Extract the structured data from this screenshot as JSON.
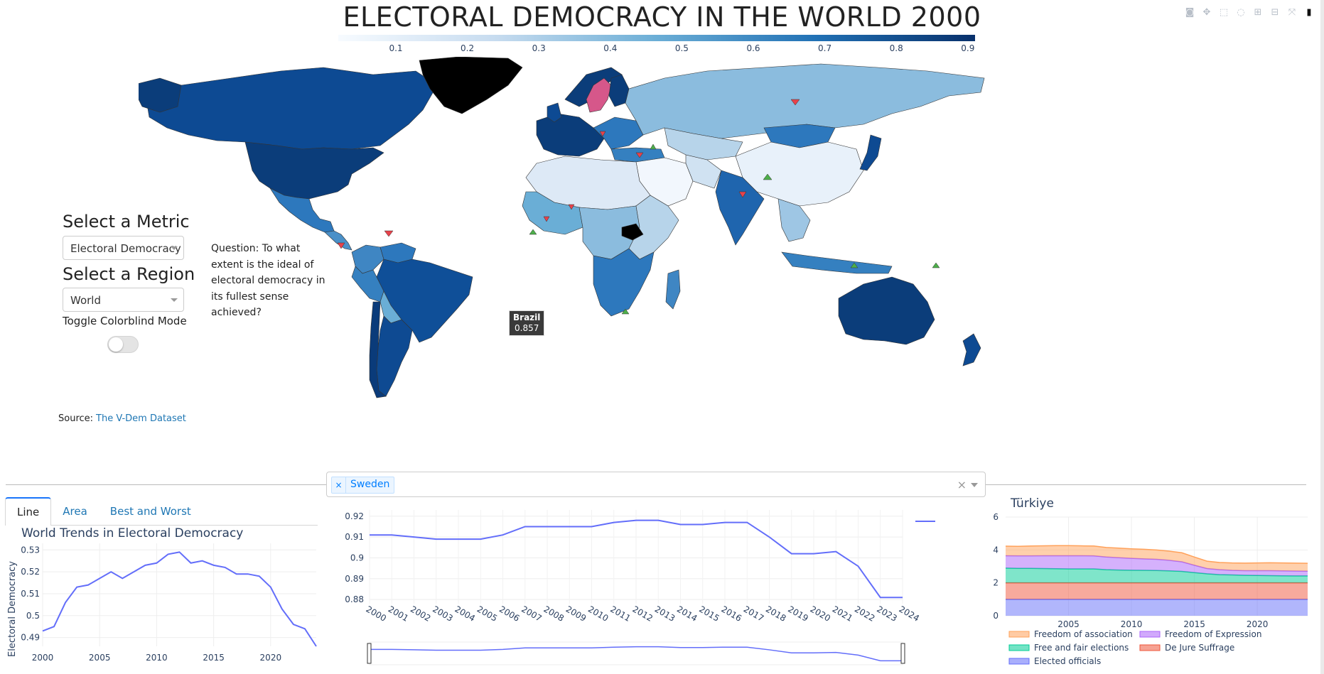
{
  "header": {
    "title": "ELECTORAL DEMOCRACY IN THE WORLD 2000",
    "colorbar_ticks": [
      "0.1",
      "0.2",
      "0.3",
      "0.4",
      "0.5",
      "0.6",
      "0.7",
      "0.8",
      "0.9"
    ],
    "colorscale": [
      "#f7fbff",
      "#c6dbef",
      "#6baed6",
      "#2171b5",
      "#08306b"
    ]
  },
  "modebar": {
    "icons": [
      "camera-icon",
      "pan-icon",
      "box-select-icon",
      "lasso-icon",
      "zoom-in-icon",
      "zoom-out-icon",
      "autoscale-icon",
      "plotly-logo-icon"
    ]
  },
  "controls": {
    "metric_heading": "Select a Metric",
    "metric_value": "Electoral Democracy",
    "region_heading": "Select a Region",
    "region_value": "World",
    "toggle_label": "Toggle Colorblind Mode",
    "toggle_on": false,
    "question": "Question: To what extent is the ideal of electoral democracy in its fullest sense achieved?",
    "source_label": "Source:",
    "source_link": "The V-Dem Dataset"
  },
  "map": {
    "tooltip_country": "Brazil",
    "tooltip_value": "0.857",
    "highlighted_country": "Sweden",
    "highlight_color": "#d6578a",
    "no_data_color": "#000000",
    "marker_down_color": "#e8424b",
    "marker_up_color": "#4daf4a"
  },
  "country_selector": {
    "selected": [
      "Sweden"
    ],
    "clear_symbol": "×"
  },
  "tabs": {
    "items": [
      {
        "label": "Line",
        "active": true
      },
      {
        "label": "Area",
        "active": false
      },
      {
        "label": "Best and Worst",
        "active": false
      }
    ]
  },
  "world_chart": {
    "title": "World Trends in Electoral Democracy",
    "ylabel": "Electoral Democracy",
    "line_color": "#636efa"
  },
  "sweden_chart": {
    "line_color": "#636efa"
  },
  "turkiye_chart": {
    "title": "Türkiye"
  },
  "chart_data": [
    {
      "type": "line",
      "title": "World Trends in Electoral Democracy",
      "xlabel": "",
      "ylabel": "Electoral Democracy",
      "x": [
        2000,
        2001,
        2002,
        2003,
        2004,
        2005,
        2006,
        2007,
        2008,
        2009,
        2010,
        2011,
        2012,
        2013,
        2014,
        2015,
        2016,
        2017,
        2018,
        2019,
        2020,
        2021,
        2022,
        2023,
        2024
      ],
      "series": [
        {
          "values": [
            0.493,
            0.495,
            0.506,
            0.513,
            0.514,
            0.517,
            0.52,
            0.517,
            0.52,
            0.523,
            0.524,
            0.528,
            0.529,
            0.524,
            0.525,
            0.523,
            0.522,
            0.519,
            0.519,
            0.518,
            0.513,
            0.503,
            0.496,
            0.494,
            0.486
          ]
        }
      ],
      "xticks": [
        "2000",
        "2005",
        "2010",
        "2015",
        "2020"
      ],
      "yticks": [
        "0.49",
        "0.5",
        "0.51",
        "0.52",
        "0.53"
      ],
      "ylim": [
        0.486,
        0.533
      ],
      "grid": true
    },
    {
      "type": "line",
      "x": [
        "2000",
        "2001",
        "2002",
        "2003",
        "2004",
        "2005",
        "2006",
        "2007",
        "2008",
        "2009",
        "2010",
        "2011",
        "2012",
        "2013",
        "2014",
        "2015",
        "2016",
        "2017",
        "2018",
        "2019",
        "2020",
        "2021",
        "2022",
        "2023",
        "2024"
      ],
      "series": [
        {
          "name": "Sweden",
          "values": [
            0.911,
            0.911,
            0.91,
            0.909,
            0.909,
            0.909,
            0.911,
            0.915,
            0.915,
            0.915,
            0.915,
            0.917,
            0.918,
            0.918,
            0.916,
            0.916,
            0.917,
            0.917,
            0.91,
            0.902,
            0.902,
            0.903,
            0.896,
            0.881,
            0.881
          ]
        }
      ],
      "yticks": [
        "0.88",
        "0.89",
        "0.9",
        "0.91",
        "0.92"
      ],
      "ylim": [
        0.878,
        0.923
      ],
      "legend": "top-right",
      "grid": true,
      "rangeslider": true
    },
    {
      "type": "area",
      "title": "Türkiye",
      "x": [
        2000,
        2001,
        2002,
        2003,
        2004,
        2005,
        2006,
        2007,
        2008,
        2009,
        2010,
        2011,
        2012,
        2013,
        2014,
        2015,
        2016,
        2017,
        2018,
        2019,
        2020,
        2021,
        2022,
        2023,
        2024
      ],
      "series": [
        {
          "name": "Elected officials",
          "color": "#636efa",
          "values": [
            1.0,
            1.0,
            1.0,
            1.0,
            1.0,
            1.0,
            1.0,
            1.0,
            1.0,
            1.0,
            1.0,
            1.0,
            1.0,
            1.0,
            1.0,
            1.0,
            1.0,
            1.0,
            1.0,
            1.0,
            1.0,
            1.0,
            1.0,
            1.0,
            1.0
          ]
        },
        {
          "name": "De Jure Suffrage",
          "color": "#ef553b",
          "values": [
            1.0,
            1.0,
            1.0,
            1.0,
            1.0,
            1.0,
            1.0,
            1.0,
            1.0,
            1.0,
            1.0,
            1.0,
            1.0,
            1.0,
            1.0,
            1.0,
            1.0,
            1.0,
            1.0,
            1.0,
            1.0,
            1.0,
            1.0,
            1.0,
            1.0
          ]
        },
        {
          "name": "Free and fair elections",
          "color": "#00cc96",
          "values": [
            0.9,
            0.88,
            0.88,
            0.87,
            0.86,
            0.85,
            0.85,
            0.85,
            0.8,
            0.78,
            0.77,
            0.76,
            0.75,
            0.73,
            0.7,
            0.62,
            0.55,
            0.5,
            0.48,
            0.46,
            0.45,
            0.44,
            0.43,
            0.42,
            0.42
          ]
        },
        {
          "name": "Freedom of Expression",
          "color": "#ab63fa",
          "values": [
            0.75,
            0.76,
            0.76,
            0.78,
            0.79,
            0.8,
            0.8,
            0.79,
            0.77,
            0.75,
            0.72,
            0.7,
            0.68,
            0.64,
            0.58,
            0.45,
            0.32,
            0.3,
            0.28,
            0.28,
            0.29,
            0.3,
            0.3,
            0.3,
            0.29
          ]
        },
        {
          "name": "Freedom of association",
          "color": "#ffa15a",
          "values": [
            0.58,
            0.58,
            0.6,
            0.6,
            0.61,
            0.61,
            0.6,
            0.6,
            0.58,
            0.58,
            0.58,
            0.58,
            0.57,
            0.56,
            0.55,
            0.5,
            0.45,
            0.44,
            0.45,
            0.46,
            0.47,
            0.48,
            0.48,
            0.48,
            0.48
          ]
        }
      ],
      "xticks": [
        "2005",
        "2010",
        "2015",
        "2020"
      ],
      "yticks": [
        "0",
        "2",
        "4",
        "6"
      ],
      "ylim": [
        0,
        6
      ],
      "legend": "bottom",
      "grid": true
    }
  ]
}
